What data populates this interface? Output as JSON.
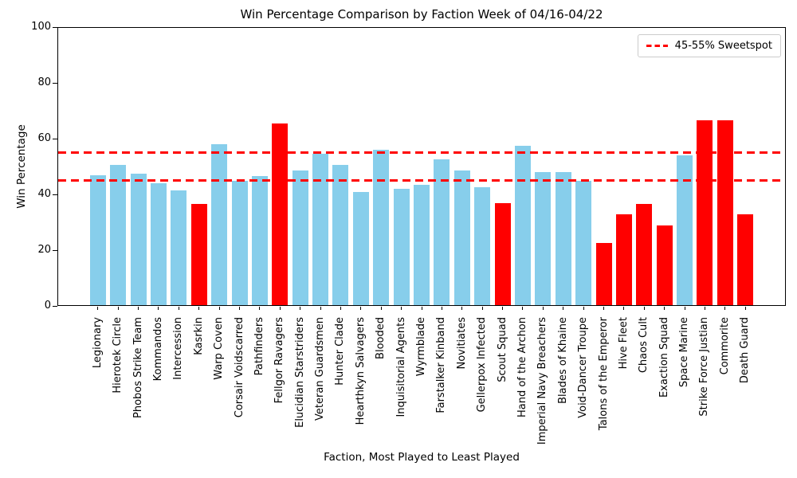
{
  "chart_data": {
    "type": "bar",
    "title": "Win Percentage Comparison by Faction Week of 04/16-04/22",
    "xlabel": "Faction, Most Played to Least Played",
    "ylabel": "Win Percentage",
    "ylim": [
      0,
      100
    ],
    "yticks": [
      0,
      20,
      40,
      60,
      80,
      100
    ],
    "grid": false,
    "legend": {
      "label": "45-55% Sweetspot",
      "position": "upper right"
    },
    "reference_lines": [
      {
        "y": 45,
        "style": "dashed",
        "color": "#ff0000"
      },
      {
        "y": 55,
        "style": "dashed",
        "color": "#ff0000"
      }
    ],
    "colors": {
      "in_sweetspot_bar": "#87ceeb",
      "outlier_bar": "#ff0000",
      "sweetspot_line": "#ff0000"
    },
    "categories": [
      "Legionary",
      "Hierotek Circle",
      "Phobos Strike Team",
      "Kommandos",
      "Intercession",
      "Kasrkin",
      "Warp Coven",
      "Corsair Voidscarred",
      "Pathfinders",
      "Fellgor Ravagers",
      "Elucidian Starstriders",
      "Veteran Guardsmen",
      "Hunter Clade",
      "Hearthkyn Salvagers",
      "Blooded",
      "Inquisitorial Agents",
      "Wyrmblade",
      "Farstalker Kinband",
      "Novitiates",
      "Gellerpox Infected",
      "Scout Squad",
      "Hand of the Archon",
      "Imperial Navy Breachers",
      "Blades of Khaine",
      "Void-Dancer Troupe",
      "Talons of the Emperor",
      "Hive Fleet",
      "Chaos Cult",
      "Exaction Squad",
      "Space Marine",
      "Strike Force Justian",
      "Commorite",
      "Death Guard"
    ],
    "values": [
      47,
      50.5,
      47.5,
      44,
      41.5,
      36.5,
      58,
      45,
      46.5,
      65.5,
      48.5,
      54.5,
      50.5,
      41,
      56,
      42,
      43.5,
      52.5,
      48.5,
      42.5,
      37,
      57.5,
      48,
      48,
      45,
      22.5,
      33,
      36.5,
      29,
      54,
      66.5,
      66.5,
      33
    ],
    "bar_colors": [
      "#87ceeb",
      "#87ceeb",
      "#87ceeb",
      "#87ceeb",
      "#87ceeb",
      "#ff0000",
      "#87ceeb",
      "#87ceeb",
      "#87ceeb",
      "#ff0000",
      "#87ceeb",
      "#87ceeb",
      "#87ceeb",
      "#87ceeb",
      "#87ceeb",
      "#87ceeb",
      "#87ceeb",
      "#87ceeb",
      "#87ceeb",
      "#87ceeb",
      "#ff0000",
      "#87ceeb",
      "#87ceeb",
      "#87ceeb",
      "#87ceeb",
      "#ff0000",
      "#ff0000",
      "#ff0000",
      "#ff0000",
      "#87ceeb",
      "#ff0000",
      "#ff0000",
      "#ff0000"
    ]
  }
}
